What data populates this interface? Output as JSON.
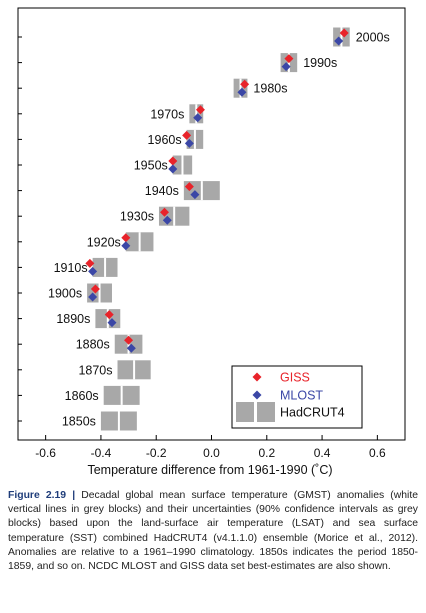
{
  "chart_data": {
    "type": "scatter",
    "xlabel": "Temperature difference from 1961-1990 (˚C)",
    "xlim": [
      -0.7,
      0.7
    ],
    "xticks": [
      -0.6,
      -0.4,
      -0.2,
      0.0,
      0.2,
      0.4,
      0.6
    ],
    "categories": [
      "2000s",
      "1990s",
      "1980s",
      "1970s",
      "1960s",
      "1950s",
      "1940s",
      "1930s",
      "1920s",
      "1910s",
      "1900s",
      "1890s",
      "1880s",
      "1870s",
      "1860s",
      "1850s"
    ],
    "hadcrut4": [
      {
        "low": 0.44,
        "high": 0.5
      },
      {
        "low": 0.25,
        "high": 0.31
      },
      {
        "low": 0.08,
        "high": 0.13
      },
      {
        "low": -0.08,
        "high": -0.03
      },
      {
        "low": -0.09,
        "high": -0.03
      },
      {
        "low": -0.14,
        "high": -0.07
      },
      {
        "low": -0.1,
        "high": 0.03
      },
      {
        "low": -0.19,
        "high": -0.08
      },
      {
        "low": -0.31,
        "high": -0.21
      },
      {
        "low": -0.43,
        "high": -0.34
      },
      {
        "low": -0.45,
        "high": -0.36
      },
      {
        "low": -0.42,
        "high": -0.33
      },
      {
        "low": -0.35,
        "high": -0.25
      },
      {
        "low": -0.34,
        "high": -0.22
      },
      {
        "low": -0.39,
        "high": -0.26
      },
      {
        "low": -0.4,
        "high": -0.27
      }
    ],
    "series": [
      {
        "name": "GISS",
        "color": "#e8232a",
        "values": [
          0.48,
          0.28,
          0.12,
          -0.04,
          -0.09,
          -0.14,
          -0.08,
          -0.17,
          -0.31,
          -0.44,
          -0.42,
          -0.37,
          -0.3,
          null,
          null,
          null
        ]
      },
      {
        "name": "MLOST",
        "color": "#3b47a6",
        "values": [
          0.46,
          0.27,
          0.11,
          -0.05,
          -0.08,
          -0.14,
          -0.06,
          -0.16,
          -0.31,
          -0.43,
          -0.43,
          -0.36,
          -0.29,
          null,
          null,
          null
        ]
      }
    ],
    "legend": {
      "position": "bottom-right",
      "items": [
        {
          "label": "GISS",
          "color": "#e8232a",
          "marker": "diamond"
        },
        {
          "label": "MLOST",
          "color": "#3b47a6",
          "marker": "diamond"
        },
        {
          "label": "HadCRUT4",
          "color": "#a8a8a8",
          "marker": "grey-blocks"
        }
      ]
    },
    "grid": false
  },
  "caption": {
    "label": "Figure 2.19",
    "separator": "|",
    "text": "Decadal global mean surface temperature (GMST) anomalies (white vertical lines in grey blocks) and their uncertainties (90% confidence intervals as grey blocks) based upon the land-surface air temperature (LSAT) and sea surface temperature (SST) combined HadCRUT4 (v4.1.1.0) ensemble (Morice et al., 2012). Anomalies are relative to a 1961–1990 climatology. 1850s indicates the period 1850-1859, and so on. NCDC MLOST and GISS data set best-estimates are also shown."
  }
}
